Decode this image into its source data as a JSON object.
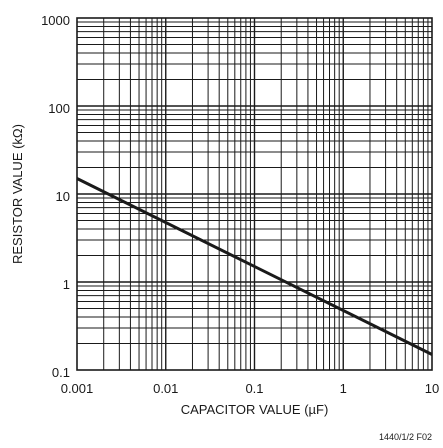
{
  "chart_data": {
    "type": "line",
    "xlabel": "CAPACITOR VALUE (µF)",
    "ylabel": "RESISTOR VALUE (kΩ)",
    "x_scale": "log",
    "y_scale": "log",
    "xlim": [
      0.001,
      10
    ],
    "ylim": [
      0.1,
      1000
    ],
    "x_ticks": [
      "0.001",
      "0.01",
      "0.1",
      "1",
      "10"
    ],
    "y_ticks": [
      "0.1",
      "1",
      "10",
      "100",
      "1000"
    ],
    "grid": true,
    "series": [
      {
        "x": [
          0.001,
          10
        ],
        "y": [
          15,
          0.15
        ]
      }
    ],
    "figure_id": "1440/1/2 F02"
  }
}
